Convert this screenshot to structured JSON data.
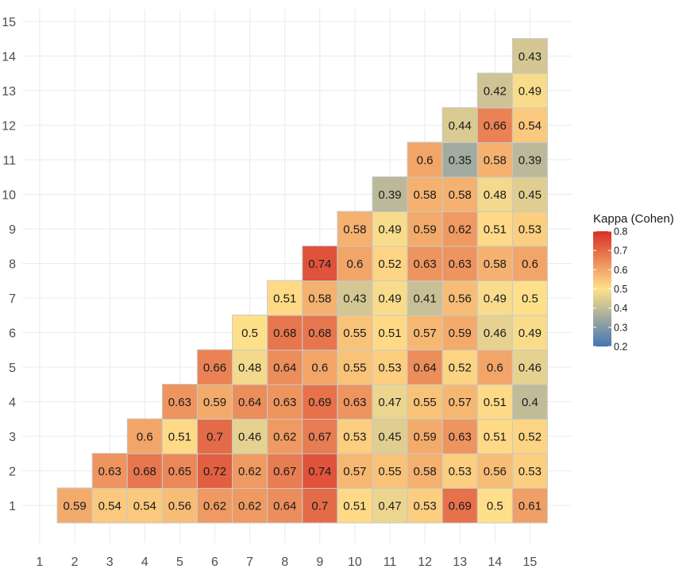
{
  "chart_data": {
    "type": "heatmap",
    "title": "",
    "xlabel": "",
    "ylabel": "",
    "x_ticks": [
      1,
      2,
      3,
      4,
      5,
      6,
      7,
      8,
      9,
      10,
      11,
      12,
      13,
      14,
      15
    ],
    "y_ticks": [
      1,
      2,
      3,
      4,
      5,
      6,
      7,
      8,
      9,
      10,
      11,
      12,
      13,
      14,
      15
    ],
    "grid": true,
    "legend": {
      "title": "Kappa (Cohen)",
      "placement": "right",
      "ticks": [
        0.2,
        0.3,
        0.4,
        0.5,
        0.6,
        0.7,
        0.8
      ],
      "range": [
        0.2,
        0.8
      ],
      "colors": {
        "low": "#4575b4",
        "mid": "#ffe08a",
        "high": "#d73027",
        "mid_value": 0.5
      }
    },
    "cells": [
      {
        "x": 2,
        "y": 1,
        "value": 0.59
      },
      {
        "x": 3,
        "y": 1,
        "value": 0.54
      },
      {
        "x": 4,
        "y": 1,
        "value": 0.54
      },
      {
        "x": 5,
        "y": 1,
        "value": 0.56
      },
      {
        "x": 6,
        "y": 1,
        "value": 0.62
      },
      {
        "x": 7,
        "y": 1,
        "value": 0.62
      },
      {
        "x": 8,
        "y": 1,
        "value": 0.64
      },
      {
        "x": 9,
        "y": 1,
        "value": 0.7
      },
      {
        "x": 10,
        "y": 1,
        "value": 0.51
      },
      {
        "x": 11,
        "y": 1,
        "value": 0.47
      },
      {
        "x": 12,
        "y": 1,
        "value": 0.53
      },
      {
        "x": 13,
        "y": 1,
        "value": 0.69
      },
      {
        "x": 14,
        "y": 1,
        "value": 0.5
      },
      {
        "x": 15,
        "y": 1,
        "value": 0.61
      },
      {
        "x": 3,
        "y": 2,
        "value": 0.63
      },
      {
        "x": 4,
        "y": 2,
        "value": 0.68
      },
      {
        "x": 5,
        "y": 2,
        "value": 0.65
      },
      {
        "x": 6,
        "y": 2,
        "value": 0.72
      },
      {
        "x": 7,
        "y": 2,
        "value": 0.62
      },
      {
        "x": 8,
        "y": 2,
        "value": 0.67
      },
      {
        "x": 9,
        "y": 2,
        "value": 0.74
      },
      {
        "x": 10,
        "y": 2,
        "value": 0.57
      },
      {
        "x": 11,
        "y": 2,
        "value": 0.55
      },
      {
        "x": 12,
        "y": 2,
        "value": 0.58
      },
      {
        "x": 13,
        "y": 2,
        "value": 0.53
      },
      {
        "x": 14,
        "y": 2,
        "value": 0.56
      },
      {
        "x": 15,
        "y": 2,
        "value": 0.53
      },
      {
        "x": 4,
        "y": 3,
        "value": 0.6
      },
      {
        "x": 5,
        "y": 3,
        "value": 0.51
      },
      {
        "x": 6,
        "y": 3,
        "value": 0.7
      },
      {
        "x": 7,
        "y": 3,
        "value": 0.46
      },
      {
        "x": 8,
        "y": 3,
        "value": 0.62
      },
      {
        "x": 9,
        "y": 3,
        "value": 0.67
      },
      {
        "x": 10,
        "y": 3,
        "value": 0.53
      },
      {
        "x": 11,
        "y": 3,
        "value": 0.45
      },
      {
        "x": 12,
        "y": 3,
        "value": 0.59
      },
      {
        "x": 13,
        "y": 3,
        "value": 0.63
      },
      {
        "x": 14,
        "y": 3,
        "value": 0.51
      },
      {
        "x": 15,
        "y": 3,
        "value": 0.52
      },
      {
        "x": 5,
        "y": 4,
        "value": 0.63
      },
      {
        "x": 6,
        "y": 4,
        "value": 0.59
      },
      {
        "x": 7,
        "y": 4,
        "value": 0.64
      },
      {
        "x": 8,
        "y": 4,
        "value": 0.63
      },
      {
        "x": 9,
        "y": 4,
        "value": 0.69
      },
      {
        "x": 10,
        "y": 4,
        "value": 0.63
      },
      {
        "x": 11,
        "y": 4,
        "value": 0.47
      },
      {
        "x": 12,
        "y": 4,
        "value": 0.55
      },
      {
        "x": 13,
        "y": 4,
        "value": 0.57
      },
      {
        "x": 14,
        "y": 4,
        "value": 0.51
      },
      {
        "x": 15,
        "y": 4,
        "value": 0.4
      },
      {
        "x": 6,
        "y": 5,
        "value": 0.66
      },
      {
        "x": 7,
        "y": 5,
        "value": 0.48
      },
      {
        "x": 8,
        "y": 5,
        "value": 0.64
      },
      {
        "x": 9,
        "y": 5,
        "value": 0.6
      },
      {
        "x": 10,
        "y": 5,
        "value": 0.55
      },
      {
        "x": 11,
        "y": 5,
        "value": 0.53
      },
      {
        "x": 12,
        "y": 5,
        "value": 0.64
      },
      {
        "x": 13,
        "y": 5,
        "value": 0.52
      },
      {
        "x": 14,
        "y": 5,
        "value": 0.6
      },
      {
        "x": 15,
        "y": 5,
        "value": 0.46
      },
      {
        "x": 7,
        "y": 6,
        "value": 0.5
      },
      {
        "x": 8,
        "y": 6,
        "value": 0.68
      },
      {
        "x": 9,
        "y": 6,
        "value": 0.68
      },
      {
        "x": 10,
        "y": 6,
        "value": 0.55
      },
      {
        "x": 11,
        "y": 6,
        "value": 0.51
      },
      {
        "x": 12,
        "y": 6,
        "value": 0.57
      },
      {
        "x": 13,
        "y": 6,
        "value": 0.59
      },
      {
        "x": 14,
        "y": 6,
        "value": 0.46
      },
      {
        "x": 15,
        "y": 6,
        "value": 0.49
      },
      {
        "x": 8,
        "y": 7,
        "value": 0.51
      },
      {
        "x": 9,
        "y": 7,
        "value": 0.58
      },
      {
        "x": 10,
        "y": 7,
        "value": 0.43
      },
      {
        "x": 11,
        "y": 7,
        "value": 0.49
      },
      {
        "x": 12,
        "y": 7,
        "value": 0.41
      },
      {
        "x": 13,
        "y": 7,
        "value": 0.56
      },
      {
        "x": 14,
        "y": 7,
        "value": 0.49
      },
      {
        "x": 15,
        "y": 7,
        "value": 0.5
      },
      {
        "x": 9,
        "y": 8,
        "value": 0.74
      },
      {
        "x": 10,
        "y": 8,
        "value": 0.6
      },
      {
        "x": 11,
        "y": 8,
        "value": 0.52
      },
      {
        "x": 12,
        "y": 8,
        "value": 0.63
      },
      {
        "x": 13,
        "y": 8,
        "value": 0.63
      },
      {
        "x": 14,
        "y": 8,
        "value": 0.58
      },
      {
        "x": 15,
        "y": 8,
        "value": 0.6
      },
      {
        "x": 10,
        "y": 9,
        "value": 0.58
      },
      {
        "x": 11,
        "y": 9,
        "value": 0.49
      },
      {
        "x": 12,
        "y": 9,
        "value": 0.59
      },
      {
        "x": 13,
        "y": 9,
        "value": 0.62
      },
      {
        "x": 14,
        "y": 9,
        "value": 0.51
      },
      {
        "x": 15,
        "y": 9,
        "value": 0.53
      },
      {
        "x": 11,
        "y": 10,
        "value": 0.39
      },
      {
        "x": 12,
        "y": 10,
        "value": 0.58
      },
      {
        "x": 13,
        "y": 10,
        "value": 0.58
      },
      {
        "x": 14,
        "y": 10,
        "value": 0.48
      },
      {
        "x": 15,
        "y": 10,
        "value": 0.45
      },
      {
        "x": 12,
        "y": 11,
        "value": 0.6
      },
      {
        "x": 13,
        "y": 11,
        "value": 0.35
      },
      {
        "x": 14,
        "y": 11,
        "value": 0.58
      },
      {
        "x": 15,
        "y": 11,
        "value": 0.39
      },
      {
        "x": 13,
        "y": 12,
        "value": 0.44
      },
      {
        "x": 14,
        "y": 12,
        "value": 0.66
      },
      {
        "x": 15,
        "y": 12,
        "value": 0.54
      },
      {
        "x": 14,
        "y": 13,
        "value": 0.42
      },
      {
        "x": 15,
        "y": 13,
        "value": 0.49
      },
      {
        "x": 15,
        "y": 14,
        "value": 0.43
      }
    ]
  }
}
